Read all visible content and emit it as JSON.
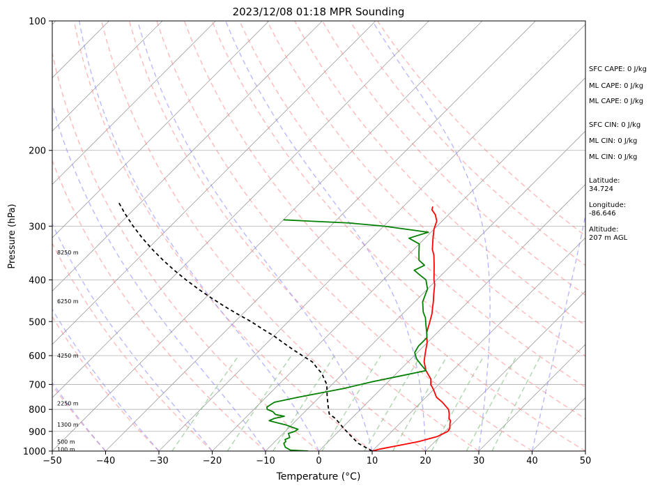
{
  "chart_data": {
    "type": "line",
    "subtype": "skew-t log-p",
    "title": "2023/12/08 01:18 MPR Sounding",
    "xlabel": "Temperature (°C)",
    "ylabel": "Pressure (hPa)",
    "xlim": [
      -50,
      50
    ],
    "ylim": [
      1000,
      100
    ],
    "y_scale": "log",
    "x_ticks": [
      -50,
      -40,
      -30,
      -20,
      -10,
      0,
      10,
      20,
      30,
      40,
      50
    ],
    "x_tick_labels": [
      "−50",
      "−40",
      "−30",
      "−20",
      "−10",
      "0",
      "10",
      "20",
      "30",
      "40",
      "50"
    ],
    "y_ticks": [
      1000,
      900,
      800,
      700,
      600,
      500,
      400,
      300,
      200,
      100
    ],
    "y_tick_labels": [
      "1000",
      "900",
      "800",
      "700",
      "600",
      "500",
      "400",
      "300",
      "200",
      "100"
    ],
    "grid": true,
    "colors": {
      "temperature": "#ff0000",
      "dewpoint": "#008000",
      "parcel": "#000000",
      "dry_adiabat": "#ff7f7f",
      "moist_adiabat": "#7f7fff",
      "mixing_ratio": "#80c080",
      "isotherm": "#a0a0a0"
    },
    "series": [
      {
        "key": "temperature",
        "points": [
          [
            10,
            1000
          ],
          [
            11,
            990
          ],
          [
            14,
            970
          ],
          [
            17,
            950
          ],
          [
            19.5,
            925
          ],
          [
            20.5,
            900
          ],
          [
            20.3,
            885
          ],
          [
            19.5,
            865
          ],
          [
            19,
            850
          ],
          [
            18.3,
            840
          ],
          [
            17.5,
            820
          ],
          [
            16.5,
            800
          ],
          [
            14,
            770
          ],
          [
            12,
            750
          ],
          [
            10,
            720
          ],
          [
            8.5,
            700
          ],
          [
            7.5,
            680
          ],
          [
            5,
            650
          ],
          [
            3,
            620
          ],
          [
            2,
            600
          ],
          [
            1,
            580
          ],
          [
            0,
            560
          ],
          [
            -1,
            545
          ],
          [
            -2,
            530
          ],
          [
            -3.2,
            505
          ],
          [
            -4.5,
            480
          ],
          [
            -5.5,
            465
          ],
          [
            -6.5,
            450
          ],
          [
            -8,
            430
          ],
          [
            -9.5,
            410
          ],
          [
            -10.5,
            400
          ],
          [
            -13.2,
            370
          ],
          [
            -15.2,
            350
          ],
          [
            -16.5,
            340
          ],
          [
            -18.5,
            320
          ],
          [
            -20,
            305
          ],
          [
            -21,
            292
          ],
          [
            -22.5,
            282
          ],
          [
            -24,
            275
          ],
          [
            -24.5,
            270
          ]
        ]
      },
      {
        "key": "dewpoint",
        "points": [
          [
            -2,
            1000
          ],
          [
            -5.5,
            995
          ],
          [
            -7,
            980
          ],
          [
            -8,
            960
          ],
          [
            -8,
            950
          ],
          [
            -8.5,
            940
          ],
          [
            -8,
            930
          ],
          [
            -8.5,
            920
          ],
          [
            -9,
            910
          ],
          [
            -8.2,
            900
          ],
          [
            -8,
            890
          ],
          [
            -9.5,
            880
          ],
          [
            -11,
            870
          ],
          [
            -13,
            860
          ],
          [
            -15,
            850
          ],
          [
            -14.5,
            840
          ],
          [
            -13,
            830
          ],
          [
            -15,
            822
          ],
          [
            -16,
            810
          ],
          [
            -17.5,
            800
          ],
          [
            -18,
            790
          ],
          [
            -17.5,
            770
          ],
          [
            -14,
            750
          ],
          [
            -10,
            730
          ],
          [
            -7,
            715
          ],
          [
            -3,
            690
          ],
          [
            1,
            670
          ],
          [
            5,
            650
          ],
          [
            3,
            630
          ],
          [
            1,
            610
          ],
          [
            -0.5,
            590
          ],
          [
            -1,
            570
          ],
          [
            -1,
            545
          ],
          [
            -2,
            530
          ],
          [
            -3.5,
            510
          ],
          [
            -5,
            490
          ],
          [
            -6.5,
            475
          ],
          [
            -8.5,
            450
          ],
          [
            -9.5,
            430
          ],
          [
            -10,
            420
          ],
          [
            -11,
            410
          ],
          [
            -12,
            400
          ],
          [
            -14,
            390
          ],
          [
            -16,
            380
          ],
          [
            -15,
            370
          ],
          [
            -17,
            360
          ],
          [
            -18.5,
            345
          ],
          [
            -20,
            330
          ],
          [
            -23,
            320
          ],
          [
            -20.5,
            310
          ],
          [
            -30,
            300
          ],
          [
            -37,
            295
          ],
          [
            -45,
            292
          ],
          [
            -50,
            290
          ]
        ]
      },
      {
        "key": "parcel",
        "points": [
          [
            10,
            1000
          ],
          [
            6,
            960
          ],
          [
            3,
            920
          ],
          [
            0,
            880
          ],
          [
            -3,
            840
          ],
          [
            -5,
            820
          ],
          [
            -7,
            780
          ],
          [
            -9,
            740
          ],
          [
            -11,
            700
          ],
          [
            -12.5,
            680
          ],
          [
            -14,
            660
          ],
          [
            -16,
            640
          ],
          [
            -18,
            620
          ],
          [
            -21,
            600
          ],
          [
            -24,
            580
          ],
          [
            -27,
            560
          ],
          [
            -30,
            540
          ],
          [
            -33.5,
            520
          ],
          [
            -37,
            500
          ],
          [
            -41,
            480
          ],
          [
            -45,
            460
          ],
          [
            -49,
            440
          ],
          [
            -53,
            420
          ],
          [
            -57,
            400
          ],
          [
            -61,
            380
          ],
          [
            -65,
            360
          ],
          [
            -69,
            340
          ],
          [
            -73,
            320
          ],
          [
            -77,
            300
          ],
          [
            -81,
            280
          ],
          [
            -84,
            265
          ]
        ]
      }
    ],
    "height_labels": [
      {
        "text": "100 m",
        "p": 990
      },
      {
        "text": "500 m",
        "p": 950
      },
      {
        "text": "1300 m",
        "p": 868
      },
      {
        "text": "2250 m",
        "p": 775
      },
      {
        "text": "4250 m",
        "p": 600
      },
      {
        "text": "6250 m",
        "p": 448
      },
      {
        "text": "8250 m",
        "p": 345
      }
    ],
    "dry_adiabats_theta_c": [
      -50,
      -40,
      -30,
      -20,
      -10,
      0,
      10,
      20,
      30,
      40,
      50,
      60,
      70,
      80,
      90,
      100,
      110,
      120
    ],
    "moist_adiabats_start_c": [
      -40,
      -30,
      -20,
      -10,
      0,
      10,
      20,
      30,
      40,
      50
    ],
    "mixing_ratios_gkg": [
      0.4,
      1,
      2,
      4,
      7,
      10,
      16,
      24,
      32
    ],
    "annotations": [
      "SFC CAPE: 0 J/kg",
      "ML CAPE: 0 J/kg",
      "ML CAPE: 0 J/kg",
      "SFC CIN: 0 J/kg",
      "ML CIN: 0 J/kg",
      "ML CIN: 0 J/kg",
      "Latitude:",
      "34.724",
      "Longitude:",
      "-86.646",
      "Altitude:",
      "207 m AGL"
    ]
  }
}
